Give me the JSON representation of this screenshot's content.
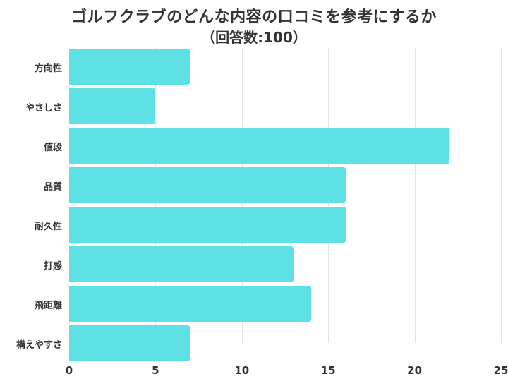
{
  "chart_data": {
    "type": "bar",
    "orientation": "horizontal",
    "title": "ゴルフクラブのどんな内容の口コミを参考にするか",
    "subtitle": "（回答数:100）",
    "categories": [
      "方向性",
      "やさしさ",
      "値段",
      "品質",
      "耐久性",
      "打感",
      "飛距離",
      "構えやすさ"
    ],
    "values": [
      7,
      5,
      22,
      16,
      16,
      13,
      14,
      7
    ],
    "xlabel": "",
    "ylabel": "",
    "xlim": [
      0,
      25
    ],
    "xticks": [
      "0",
      "5",
      "10",
      "15",
      "20",
      "25"
    ],
    "grid": true,
    "legend": null,
    "bar_color": "#5ee0e5"
  }
}
